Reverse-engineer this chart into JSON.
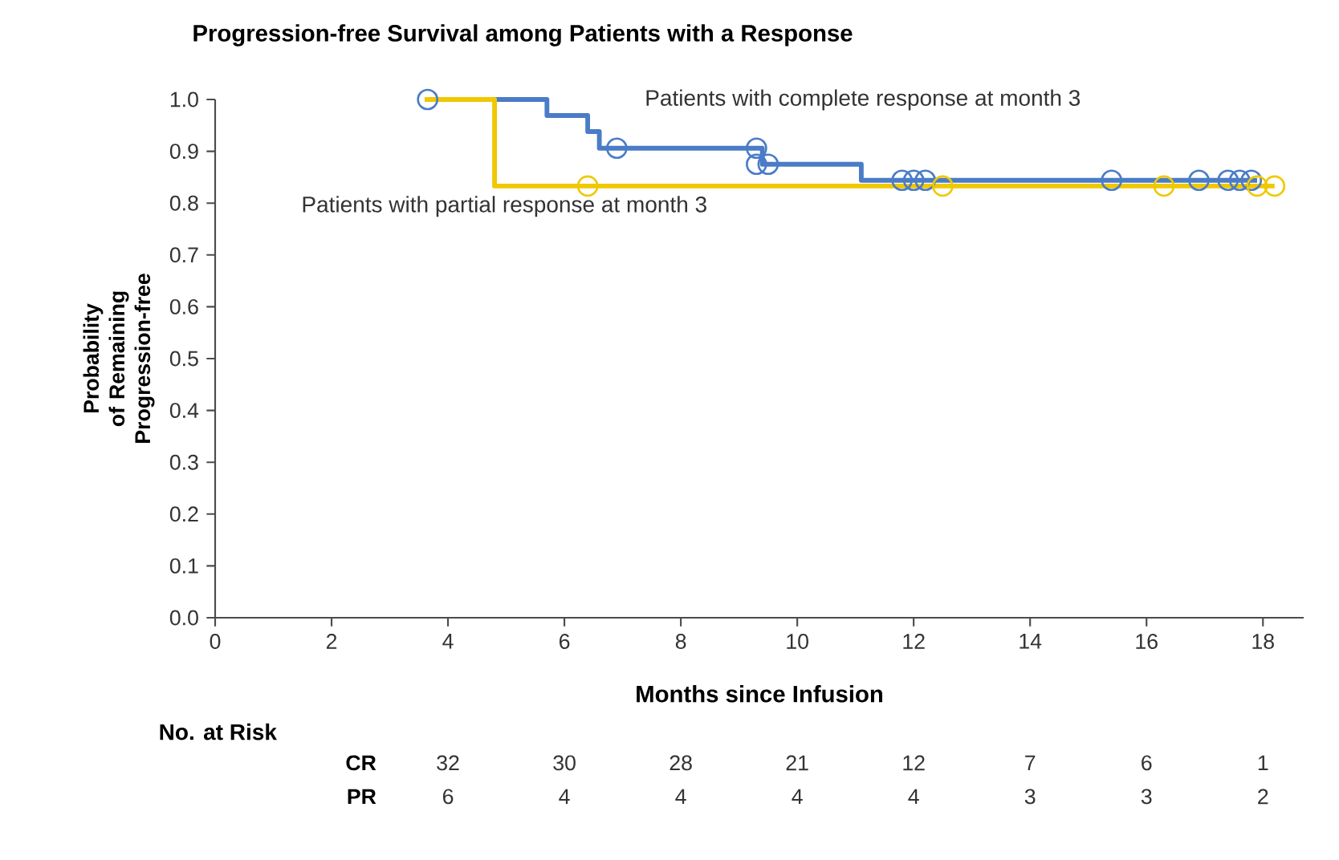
{
  "chart_data": {
    "type": "step",
    "title": "Progression-free Survival among Patients with a Response",
    "xlabel": "Months since Infusion",
    "ylabel": "Probability of Remaining Progression-free",
    "xlim": [
      0,
      18.7
    ],
    "xticks": [
      0,
      2,
      4,
      6,
      8,
      10,
      12,
      14,
      16,
      18
    ],
    "ylim": [
      0,
      1.0
    ],
    "yticks": [
      {
        "value": 0,
        "label": "0.0"
      },
      {
        "value": 0.1,
        "label": "0.1"
      },
      {
        "value": 0.2,
        "label": "0.2"
      },
      {
        "value": 0.3,
        "label": "0.3"
      },
      {
        "value": 0.4,
        "label": "0.4"
      },
      {
        "value": 0.5,
        "label": "0.5"
      },
      {
        "value": 0.6,
        "label": "0.6"
      },
      {
        "value": 0.7,
        "label": "0.7"
      },
      {
        "value": 0.8,
        "label": "0.8"
      },
      {
        "value": 0.9,
        "label": "0.9"
      },
      {
        "value": 1.0,
        "label": "1.0"
      }
    ],
    "grid": false,
    "series": [
      {
        "name": "Patients with complete response at month 3",
        "color": "#4a7cc7",
        "marker": "none",
        "x": [
          3.6,
          5.7,
          6.4,
          6.6,
          9.4,
          11.1,
          17.9
        ],
        "values": [
          1.0,
          0.969,
          0.938,
          0.906,
          0.875,
          0.844,
          0.844
        ]
      },
      {
        "name": "Patients with partial response at month 3",
        "color": "#f0c800",
        "marker": "none",
        "x": [
          3.6,
          4.8,
          18.2
        ],
        "values": [
          1.0,
          0.833,
          0.833
        ]
      },
      {
        "type": "scatter",
        "color": "#4a7cc7",
        "marker": "circle",
        "x": [
          3.65,
          6.9,
          9.3,
          9.3,
          9.5,
          11.8,
          12.0,
          12.2,
          15.4,
          16.9,
          17.4,
          17.6,
          17.8
        ],
        "values": [
          1.0,
          0.906,
          0.906,
          0.875,
          0.875,
          0.844,
          0.844,
          0.844,
          0.844,
          0.844,
          0.844,
          0.844,
          0.844
        ]
      },
      {
        "type": "scatter",
        "color": "#f0c800",
        "marker": "circle",
        "x": [
          6.4,
          12.5,
          16.3,
          17.9,
          18.2
        ],
        "values": [
          0.833,
          0.833,
          0.833,
          0.833,
          0.833
        ]
      }
    ],
    "annotations": [
      "No. at Risk",
      "CR",
      "32",
      "30",
      "28",
      "21",
      "12",
      "7",
      "6",
      "1",
      "PR",
      "6",
      "4",
      "4",
      "4",
      "4",
      "3",
      "3",
      "2"
    ]
  }
}
